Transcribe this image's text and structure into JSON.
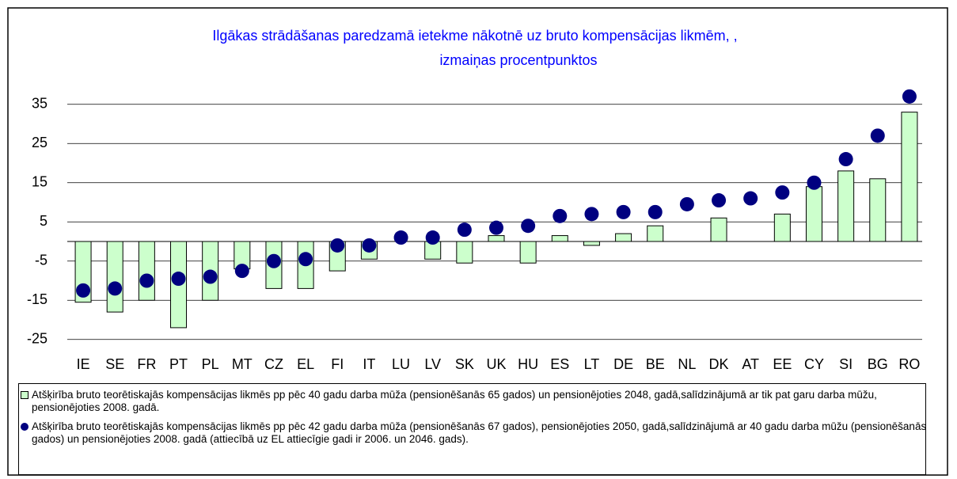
{
  "chart_data": {
    "type": "bar-dot",
    "title": [
      "Ilgākas strādāšanas paredzamā ietekme nākotnē uz bruto kompensācijas likmēm, ,",
      "izmaiņas procentpunktos"
    ],
    "categories": [
      "IE",
      "SE",
      "FR",
      "PT",
      "PL",
      "MT",
      "CZ",
      "EL",
      "FI",
      "IT",
      "LU",
      "LV",
      "SK",
      "UK",
      "HU",
      "ES",
      "LT",
      "DE",
      "BE",
      "NL",
      "DK",
      "AT",
      "EE",
      "CY",
      "SI",
      "BG",
      "RO"
    ],
    "series": [
      {
        "name": "Atšķirība bruto teorētiskajās kompensācijas likmēs pp pēc 40 gadu darba mūža (pensionēšanās 65 gados) un pensionējoties 2048, gadā,salīdzinājumā ar tik pat garu darba mūžu, pensionējoties 2008. gadā.",
        "kind": "bar",
        "color": "#ccffcc",
        "values": [
          -15.5,
          -18,
          -15,
          -22,
          -15,
          -7,
          -12,
          -12,
          -7.5,
          -4.5,
          null,
          -4.5,
          -5.5,
          1.5,
          -5.5,
          1.5,
          -1,
          2,
          4,
          null,
          6,
          null,
          7,
          14,
          18,
          16,
          33
        ]
      },
      {
        "name": "Atšķirība bruto teorētiskajās kompensācijas likmēs pp pēc 42 gadu darba mūža (pensionēšanās 67 gados), pensionējoties 2050, gadā,salīdzinājumā ar 40 gadu darba mūžu (pensionēšanās 65 gados) un pensionējoties 2008. gadā (attiecībā uz EL attiecīgie gadi ir 2006. un 2046. gads).",
        "kind": "dot",
        "color": "#000080",
        "values": [
          -12.5,
          -12,
          -10,
          -9.5,
          -9,
          -7.5,
          -5,
          -4.5,
          -1,
          -1,
          1,
          1,
          3,
          3.5,
          4,
          6.5,
          7,
          7.5,
          7.5,
          9.5,
          10.5,
          11,
          12.5,
          15,
          21,
          27,
          37
        ]
      }
    ],
    "ylim": [
      -25,
      40
    ],
    "yticks": [
      35,
      25,
      15,
      5,
      -5,
      -15,
      -25
    ],
    "grid": true
  }
}
